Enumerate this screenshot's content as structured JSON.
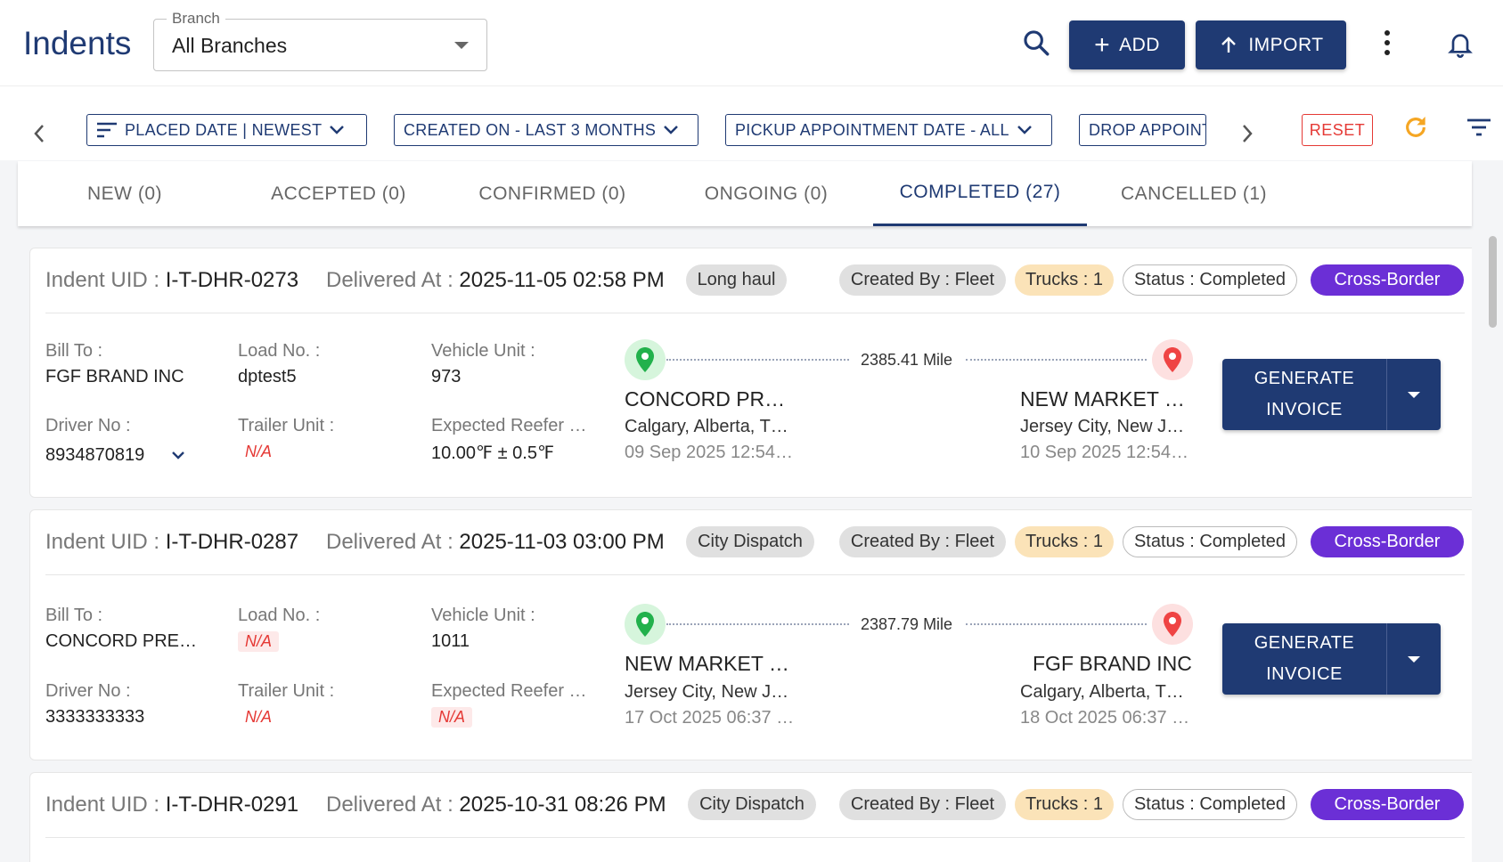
{
  "header": {
    "title": "Indents",
    "branch_label": "Branch",
    "branch_value": "All Branches",
    "add_label": "ADD",
    "import_label": "IMPORT"
  },
  "filters": {
    "chips": [
      {
        "label": "PLACED DATE | NEWEST"
      },
      {
        "label": "CREATED ON - LAST 3 MONTHS"
      },
      {
        "label": "PICKUP APPOINTMENT DATE - ALL"
      },
      {
        "label": "DROP APPOINTMENT DATE - ALL"
      }
    ],
    "reset_label": "RESET"
  },
  "tabs": [
    {
      "label": "NEW (0)"
    },
    {
      "label": "ACCEPTED (0)"
    },
    {
      "label": "CONFIRMED (0)"
    },
    {
      "label": "ONGOING (0)"
    },
    {
      "label": "COMPLETED (27)",
      "active": true
    },
    {
      "label": "CANCELLED (1)"
    }
  ],
  "labels": {
    "indent_uid": "Indent UID : ",
    "delivered_at": "Delivered At : ",
    "bill_to": "Bill To :",
    "load_no": "Load No. :",
    "vehicle_unit": "Vehicle Unit :",
    "driver_no": "Driver No :",
    "trailer_unit": "Trailer Unit :",
    "expected_reefer": "Expected Reefer …",
    "generate_invoice_line1": "GENERATE",
    "generate_invoice_line2": "INVOICE"
  },
  "cards": [
    {
      "uid": "I-T-DHR-0273",
      "delivered_at": "2025-11-05 02:58 PM",
      "type": "Long haul",
      "created_by": "Created By : Fleet",
      "trucks": "Trucks : 1",
      "status": "Status : Completed",
      "cross_border": "Cross-Border",
      "bill_to": "FGF BRAND INC",
      "load_no": "dptest5",
      "vehicle_unit": "973",
      "driver_no": "8934870819",
      "trailer_unit": "N/A",
      "reefer": "10.00℉ ± 0.5℉",
      "distance": "2385.41 Mile",
      "origin": {
        "name": "CONCORD PR…",
        "city": "Calgary, Alberta, T…",
        "time": "09 Sep 2025 12:54…"
      },
      "destination": {
        "name": "NEW MARKET …",
        "city": "Jersey City, New J…",
        "time": "10 Sep 2025 12:54…"
      }
    },
    {
      "uid": "I-T-DHR-0287",
      "delivered_at": "2025-11-03 03:00 PM",
      "type": "City Dispatch",
      "created_by": "Created By : Fleet",
      "trucks": "Trucks : 1",
      "status": "Status : Completed",
      "cross_border": "Cross-Border",
      "bill_to": "CONCORD PRE…",
      "load_no": "N/A",
      "vehicle_unit": "1011",
      "driver_no": "3333333333",
      "trailer_unit": "N/A",
      "reefer": "N/A",
      "distance": "2387.79 Mile",
      "origin": {
        "name": "NEW MARKET …",
        "city": "Jersey City, New J…",
        "time": "17 Oct 2025 06:37 …"
      },
      "destination": {
        "name": "FGF BRAND INC",
        "city": "Calgary, Alberta, T…",
        "time": "18 Oct 2025 06:37 …"
      }
    },
    {
      "uid": "I-T-DHR-0291",
      "delivered_at": "2025-10-31 08:26 PM",
      "type": "City Dispatch",
      "created_by": "Created By : Fleet",
      "trucks": "Trucks : 1",
      "status": "Status : Completed",
      "cross_border": "Cross-Border"
    }
  ],
  "colors": {
    "primary": "#1f3a73",
    "danger": "#e53935",
    "cross_border": "#6b2fd6",
    "trucks_bg": "#fbe3b8",
    "origin_pin": "#22b14c",
    "destination_pin": "#ef4444",
    "refresh": "#f5a623"
  }
}
